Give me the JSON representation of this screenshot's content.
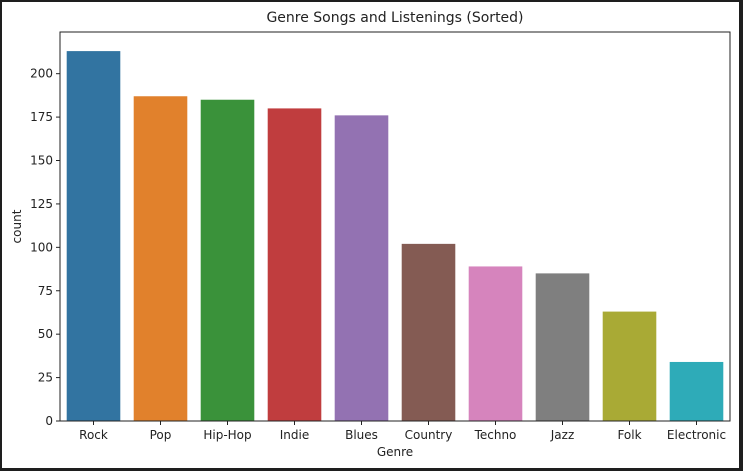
{
  "chart_data": {
    "type": "bar",
    "title": "Genre Songs and Listenings (Sorted)",
    "xlabel": "Genre",
    "ylabel": "count",
    "categories": [
      "Rock",
      "Pop",
      "Hip-Hop",
      "Indie",
      "Blues",
      "Country",
      "Techno",
      "Jazz",
      "Folk",
      "Electronic"
    ],
    "values": [
      213,
      187,
      185,
      180,
      176,
      102,
      89,
      85,
      63,
      34
    ],
    "colors": [
      "#3274a1",
      "#e1812c",
      "#3a923a",
      "#c03d3e",
      "#9372b2",
      "#845b53",
      "#d684bd",
      "#7f7f7f",
      "#a9aa35",
      "#2eabb8"
    ],
    "ylim": [
      0,
      224
    ],
    "yticks": [
      "0",
      "25",
      "50",
      "75",
      "100",
      "125",
      "150",
      "175",
      "200"
    ],
    "grid": false,
    "legend": "none"
  }
}
